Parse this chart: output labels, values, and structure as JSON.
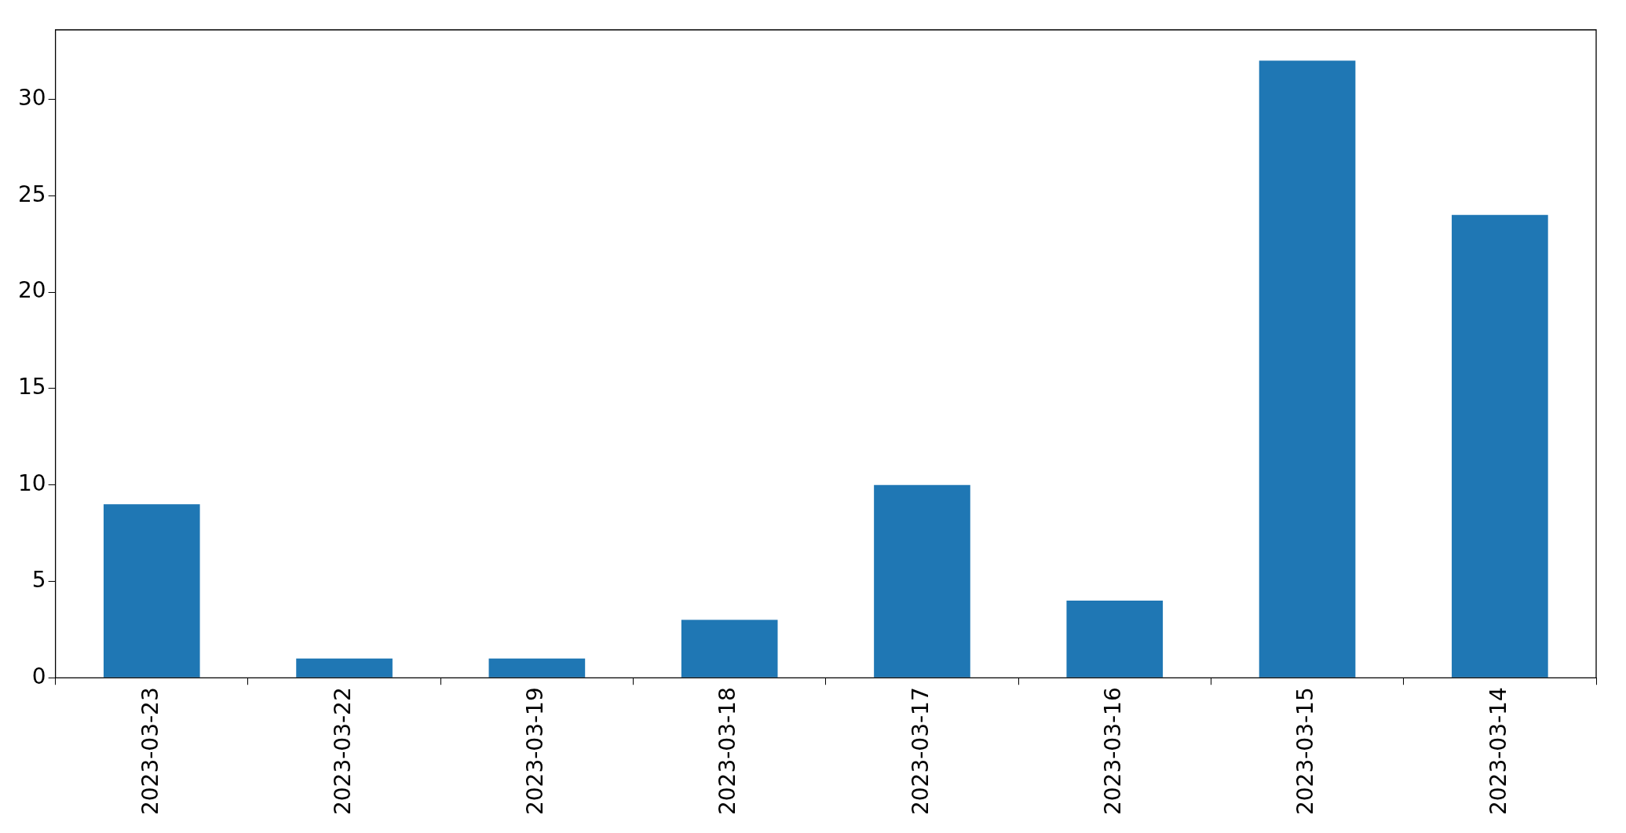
{
  "chart_data": {
    "type": "bar",
    "categories": [
      "2023-03-23",
      "2023-03-22",
      "2023-03-19",
      "2023-03-18",
      "2023-03-17",
      "2023-03-16",
      "2023-03-15",
      "2023-03-14"
    ],
    "values": [
      9,
      1,
      1,
      3,
      10,
      4,
      32,
      24
    ],
    "color": "#1f77b4",
    "ylim": [
      0,
      33.6
    ],
    "yticks": [
      0,
      5,
      10,
      15,
      20,
      25,
      30
    ],
    "grid": false,
    "legend": false
  }
}
